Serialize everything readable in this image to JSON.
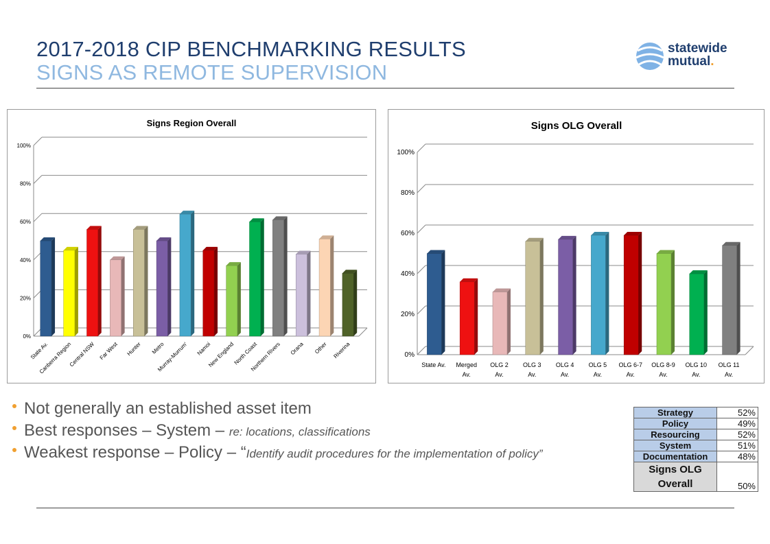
{
  "header": {
    "title": "2017-2018 CIP BENCHMARKING RESULTS",
    "subtitle": "SIGNS AS REMOTE SUPERVISION",
    "logo_line1": "statewide",
    "logo_line2": "mutual",
    "logo_dot": "."
  },
  "chart_data": [
    {
      "type": "bar",
      "title": "Signs Region Overall",
      "categories": [
        "State Av.",
        "Canberra Region",
        "Central NSW",
        "Far West",
        "Hunter",
        "Metro",
        "Murray-Murrum'",
        "Namoi",
        "New England",
        "North Coast",
        "Northern Rivers",
        "Orana",
        "Other",
        "Riverina"
      ],
      "values": [
        50,
        45,
        56,
        40,
        56,
        50,
        64,
        45,
        37,
        60,
        61,
        43,
        51,
        33
      ],
      "colors": [
        "#2e5c90",
        "#ffff00",
        "#ee1111",
        "#e8b8b8",
        "#c8c098",
        "#7b5ea6",
        "#46a8cc",
        "#c00000",
        "#92d050",
        "#00b050",
        "#808080",
        "#ccc0dc",
        "#fcd5b4",
        "#4f6228"
      ],
      "yticks": [
        "0%",
        "20%",
        "40%",
        "60%",
        "80%",
        "100%"
      ],
      "ylim": [
        0,
        100
      ],
      "grid": true
    },
    {
      "type": "bar",
      "title": "Signs OLG Overall",
      "categories": [
        "State Av.",
        "Merged Av.",
        "OLG 2 Av.",
        "OLG 3 Av.",
        "OLG 4 Av.",
        "OLG 5 Av.",
        "OLG 6-7 Av.",
        "OLG 8-9 Av.",
        "OLG 10 Av.",
        "OLG 11 Av."
      ],
      "values": [
        50,
        36,
        31,
        56,
        57,
        59,
        59,
        50,
        40,
        54
      ],
      "colors": [
        "#2e5c90",
        "#ee1111",
        "#e8b8b8",
        "#c8c098",
        "#7b5ea6",
        "#46a8cc",
        "#c00000",
        "#92d050",
        "#00b050",
        "#808080"
      ],
      "yticks": [
        "0%",
        "20%",
        "40%",
        "60%",
        "80%",
        "100%"
      ],
      "ylim": [
        0,
        100
      ],
      "grid": true
    }
  ],
  "bullets": [
    {
      "main": "Not generally an established asset item",
      "detail": ""
    },
    {
      "main": "Best responses – System – ",
      "detail": "re: locations, classifications"
    },
    {
      "main": "Weakest response – Policy – “",
      "detail": "Identify audit procedures for the implementation of policy”"
    }
  ],
  "summary": {
    "rows": [
      {
        "label": "Strategy",
        "value": "52%"
      },
      {
        "label": "Policy",
        "value": "49%"
      },
      {
        "label": "Resourcing",
        "value": "52%"
      },
      {
        "label": "System",
        "value": "51%"
      },
      {
        "label": "Documentation",
        "value": "48%"
      }
    ],
    "total_label_1": "Signs OLG",
    "total_label_2": "Overall",
    "total_value": "50%"
  }
}
